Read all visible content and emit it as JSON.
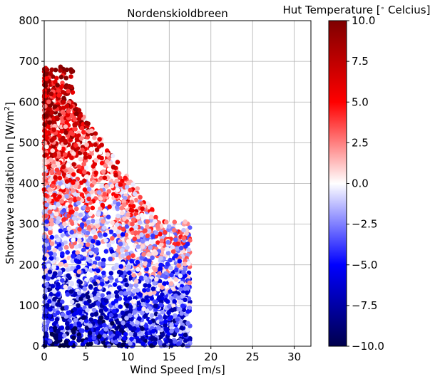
{
  "chart_data": {
    "type": "scatter",
    "title": "Nordenskioldbreen",
    "xlabel": "Wind Speed [m/s]",
    "ylabel": "Shortwave radiation In [W/m²]",
    "ylabel_parts": [
      "Shortwave radiation In [W/m",
      "2",
      "]"
    ],
    "xlim": [
      0,
      32
    ],
    "ylim": [
      0,
      800
    ],
    "xticks": [
      0,
      5,
      10,
      15,
      20,
      25,
      30
    ],
    "yticks": [
      0,
      100,
      200,
      300,
      400,
      500,
      600,
      700,
      800
    ],
    "grid": true,
    "colorbar": {
      "label": "Hut Temperature [° Celcius]",
      "label_parts": [
        "Hut Temperature [",
        "∘",
        " Celcius]"
      ],
      "colormap": "seismic",
      "range": [
        -10.0,
        10.0
      ],
      "ticks": [
        10.0,
        7.5,
        5.0,
        2.5,
        0.0,
        -2.5,
        -5.0,
        -7.5,
        -10.0
      ],
      "tick_labels": [
        "10.0",
        "7.5",
        "5.0",
        "2.5",
        "0.0",
        "−2.5",
        "−5.0",
        "−7.5",
        "−10.0"
      ]
    },
    "marker_color_scale": [
      "#00004c",
      "#0000ff",
      "#ffffff",
      "#ff0000",
      "#7f0000"
    ]
  }
}
